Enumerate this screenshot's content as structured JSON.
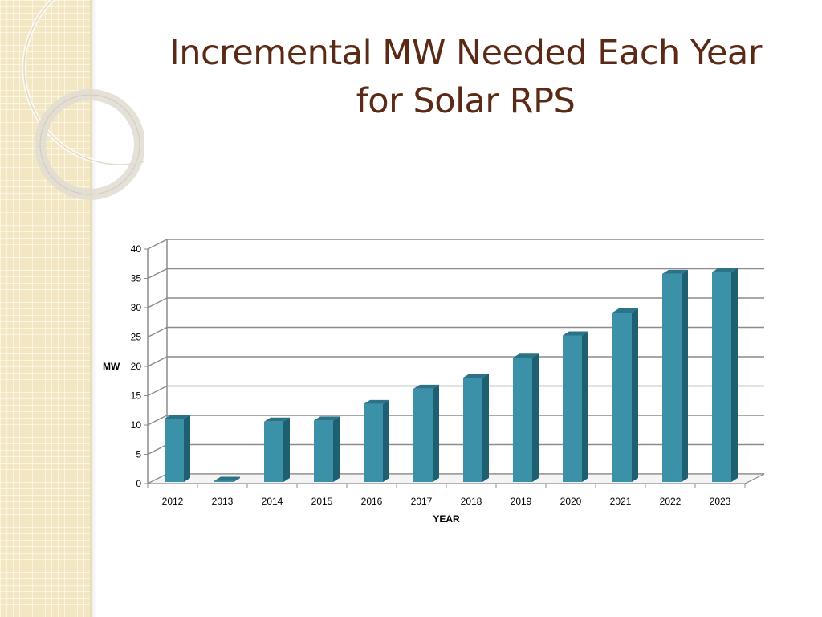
{
  "slide": {
    "title_line1": "Incremental MW Needed Each Year",
    "title_line2": "for Solar RPS",
    "title_color": "#5a2a16",
    "panel_color": "#f3e6c2"
  },
  "chart_data": {
    "type": "bar",
    "categories": [
      "2012",
      "2013",
      "2014",
      "2015",
      "2016",
      "2017",
      "2018",
      "2019",
      "2020",
      "2021",
      "2022",
      "2023"
    ],
    "values": [
      10.8,
      0.2,
      10.3,
      10.5,
      13.3,
      15.9,
      17.8,
      21.2,
      25.0,
      28.9,
      35.5,
      35.8
    ],
    "xlabel": "YEAR",
    "ylabel": "MW",
    "ylim": [
      0,
      40
    ],
    "yticks": [
      "0",
      "5",
      "10",
      "15",
      "20",
      "25",
      "30",
      "35",
      "40"
    ],
    "grid": true,
    "bar_color": "#3a91a8",
    "style": "3d"
  }
}
